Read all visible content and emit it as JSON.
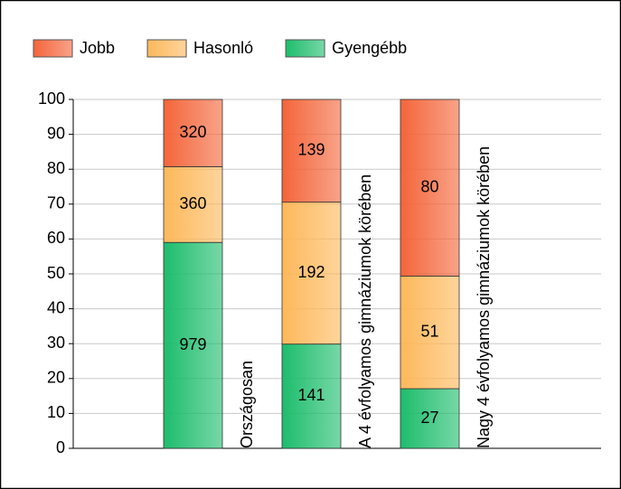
{
  "chart_data": {
    "type": "bar",
    "stacked": true,
    "normalize": true,
    "legend": "top",
    "grid": true,
    "categories": [
      "Országosan",
      "A 4 évfolyamos gimnáziumok körében",
      "Nagy 4 évfolyamos gimnáziumok körében"
    ],
    "series": [
      {
        "name": "Jobb",
        "color": "#f4653a",
        "values": [
          320,
          139,
          80
        ]
      },
      {
        "name": "Hasonló",
        "color": "#fdb85a",
        "values": [
          360,
          192,
          51
        ]
      },
      {
        "name": "Gyengébb",
        "color": "#1dbd6c",
        "values": [
          979,
          141,
          27
        ]
      }
    ],
    "ylim": [
      0,
      100
    ],
    "yticks": [
      0,
      10,
      20,
      30,
      40,
      50,
      60,
      70,
      80,
      90,
      100
    ]
  }
}
